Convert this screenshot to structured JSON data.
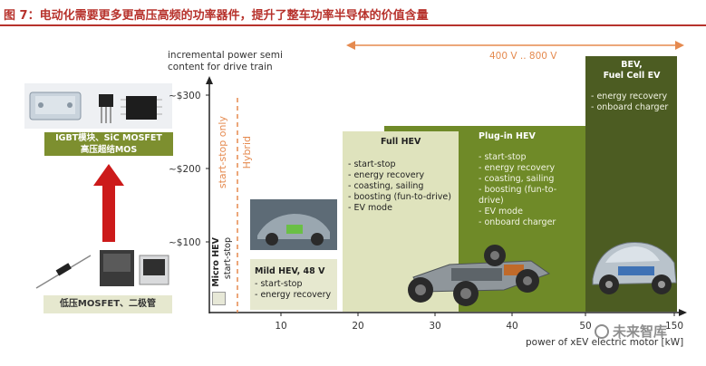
{
  "figure": {
    "title": "图 7：电动化需要更多更高压高频的功率器件，提升了整车功率半导体的价值含量"
  },
  "chart": {
    "y_axis_title_line1": "incremental power semi",
    "y_axis_title_line2": "content for drive train",
    "y_ticks": [
      "~$300",
      "~$200",
      "~$100"
    ],
    "x_ticks": [
      "10",
      "20",
      "30",
      "40",
      "50",
      "150"
    ],
    "x_axis_title": "power of xEV electric motor [kW]",
    "voltage_label": "400 V .. 800 V",
    "start_stop_label": "start-stop only",
    "hybrid_label": "Hybrid"
  },
  "segments": {
    "micro": {
      "title": "Micro HEV",
      "item": "start-stop"
    },
    "mild": {
      "title": "Mild HEV, 48 V",
      "items": [
        "start-stop",
        "energy recovery"
      ]
    },
    "full": {
      "title": "Full HEV",
      "items": [
        "start-stop",
        "energy recovery",
        "coasting, sailing",
        "boosting (fun-to-drive)",
        "EV mode"
      ]
    },
    "plugin": {
      "title": "Plug-in HEV",
      "items": [
        "start-stop",
        "energy recovery",
        "coasting, sailing",
        "boosting (fun-to-drive)",
        "EV mode",
        "onboard charger"
      ]
    },
    "bev": {
      "title_line1": "BEV,",
      "title_line2": "Fuel Cell EV",
      "items": [
        "energy recovery",
        "onboard charger"
      ]
    }
  },
  "devices": {
    "high_label_line1": "IGBT模块、SiC MOSFET",
    "high_label_line2": "高压超结MOS",
    "low_label": "低压MOSFET、二极管"
  },
  "watermark": "未来智库",
  "colors": {
    "title_red": "#b7322c",
    "full_bg": "#dfe3bd",
    "plugin_bg": "#6f8a28",
    "bev_bg": "#4c5c22",
    "orange": "#e58a4f",
    "device_label_bg": "#7d8f2f",
    "arrow_red": "#cc1a1a"
  }
}
